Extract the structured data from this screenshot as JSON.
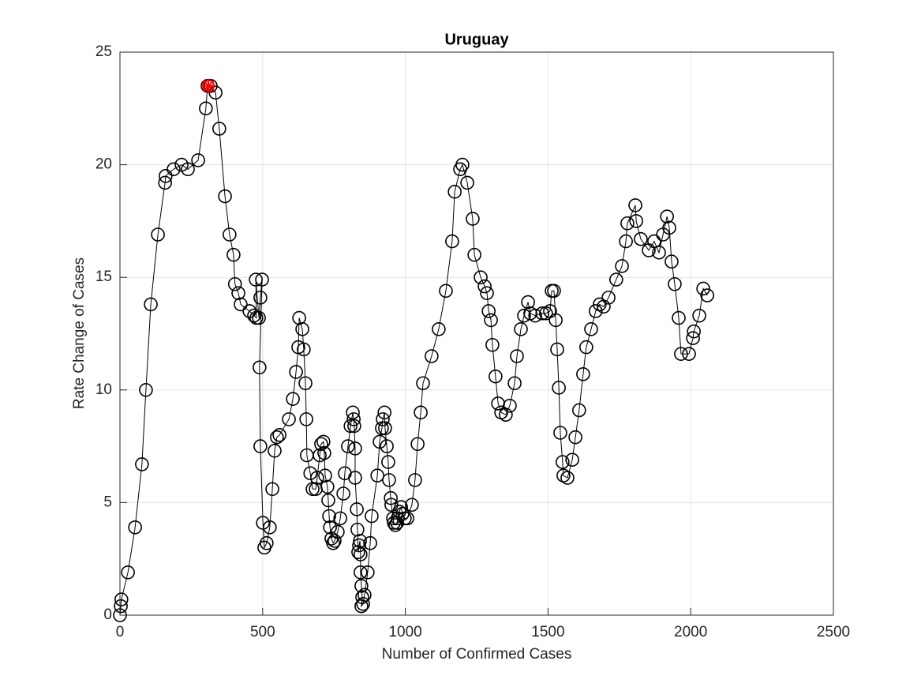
{
  "chart_data": {
    "type": "line",
    "title": "Uruguay",
    "xlabel": "Number of Confirmed Cases",
    "ylabel": "Rate Change of Cases",
    "x": [
      0,
      3,
      5,
      28,
      53,
      77,
      91,
      108,
      133,
      158,
      160,
      188,
      216,
      238,
      274,
      301,
      307,
      318,
      335,
      348,
      368,
      384,
      398,
      403,
      415,
      423,
      454,
      470,
      478,
      476,
      487,
      492,
      498,
      489,
      492,
      501,
      506,
      514,
      525,
      534,
      542,
      550,
      559,
      592,
      606,
      617,
      625,
      628,
      639,
      644,
      650,
      653,
      655,
      667,
      675,
      686,
      691,
      700,
      705,
      713,
      716,
      719,
      727,
      730,
      733,
      736,
      741,
      747,
      752,
      763,
      772,
      783,
      788,
      799,
      808,
      816,
      819,
      821,
      824,
      824,
      830,
      832,
      835,
      838,
      841,
      843,
      843,
      846,
      849,
      846,
      852,
      857,
      868,
      877,
      882,
      902,
      910,
      918,
      921,
      927,
      929,
      935,
      940,
      943,
      949,
      951,
      957,
      960,
      965,
      971,
      973,
      979,
      985,
      990,
      998,
      1007,
      1023,
      1034,
      1043,
      1054,
      1062,
      1092,
      1117,
      1142,
      1164,
      1173,
      1192,
      1200,
      1217,
      1236,
      1242,
      1264,
      1278,
      1286,
      1292,
      1300,
      1305,
      1316,
      1325,
      1336,
      1352,
      1366,
      1383,
      1391,
      1405,
      1416,
      1430,
      1438,
      1455,
      1480,
      1493,
      1507,
      1513,
      1521,
      1527,
      1532,
      1538,
      1543,
      1551,
      1554,
      1568,
      1585,
      1596,
      1609,
      1623,
      1634,
      1651,
      1667,
      1681,
      1695,
      1712,
      1739,
      1759,
      1773,
      1778,
      1806,
      1809,
      1825,
      1853,
      1872,
      1889,
      1903,
      1917,
      1925,
      1933,
      1944,
      1958,
      1966,
      1994,
      2008,
      2011,
      2030,
      2044,
      2058
    ],
    "values": [
      0,
      0.4,
      0.7,
      1.9,
      3.9,
      6.7,
      10.0,
      13.8,
      16.9,
      19.2,
      19.5,
      19.8,
      20.0,
      19.8,
      20.2,
      22.5,
      23.5,
      23.5,
      23.2,
      21.6,
      18.6,
      16.9,
      16.0,
      14.7,
      14.3,
      13.8,
      13.5,
      13.3,
      13.2,
      14.9,
      13.2,
      14.1,
      14.9,
      11.0,
      7.5,
      4.1,
      3.0,
      3.2,
      3.9,
      5.6,
      7.3,
      7.9,
      8.0,
      8.7,
      9.6,
      10.8,
      11.9,
      13.2,
      12.7,
      11.8,
      10.3,
      8.7,
      7.1,
      6.3,
      5.6,
      5.6,
      6.1,
      7.1,
      7.6,
      7.7,
      7.2,
      6.2,
      5.7,
      5.1,
      4.4,
      3.9,
      3.4,
      3.2,
      3.3,
      3.7,
      4.3,
      5.4,
      6.3,
      7.5,
      8.4,
      9.0,
      8.7,
      8.4,
      7.4,
      6.1,
      4.7,
      3.8,
      2.8,
      3.1,
      3.3,
      2.7,
      1.9,
      1.3,
      0.8,
      0.4,
      0.5,
      0.9,
      1.9,
      3.2,
      4.4,
      6.2,
      7.7,
      8.3,
      8.7,
      9.0,
      8.3,
      7.5,
      6.8,
      6.0,
      5.2,
      4.9,
      4.3,
      4.1,
      4.0,
      4.1,
      4.3,
      4.6,
      4.8,
      4.5,
      4.3,
      4.3,
      4.9,
      6.0,
      7.6,
      9.0,
      10.3,
      11.5,
      12.7,
      14.4,
      16.6,
      18.8,
      19.8,
      20.0,
      19.2,
      17.6,
      16.0,
      15.0,
      14.6,
      14.3,
      13.5,
      13.1,
      12.0,
      10.6,
      9.4,
      9.0,
      8.9,
      9.3,
      10.3,
      11.5,
      12.7,
      13.3,
      13.9,
      13.4,
      13.3,
      13.4,
      13.4,
      13.5,
      14.4,
      14.4,
      13.1,
      11.8,
      10.1,
      8.1,
      6.8,
      6.2,
      6.1,
      6.9,
      7.9,
      9.1,
      10.7,
      11.9,
      12.7,
      13.5,
      13.8,
      13.7,
      14.1,
      14.9,
      15.5,
      16.6,
      17.4,
      18.2,
      17.5,
      16.7,
      16.2,
      16.6,
      16.1,
      16.9,
      17.7,
      17.2,
      15.7,
      14.7,
      13.2,
      11.6,
      11.6,
      12.3,
      12.6,
      13.3,
      14.5,
      14.2
    ],
    "color": "#000000",
    "highlight": {
      "x": 310,
      "y": 23.5,
      "color": "#ff0000"
    },
    "xlim": [
      0,
      2500
    ],
    "xticks": [
      0,
      500,
      1000,
      1500,
      2000,
      2500
    ],
    "ylim": [
      0,
      25
    ],
    "yticks": [
      0,
      5,
      10,
      15,
      20,
      25
    ],
    "grid": true
  }
}
